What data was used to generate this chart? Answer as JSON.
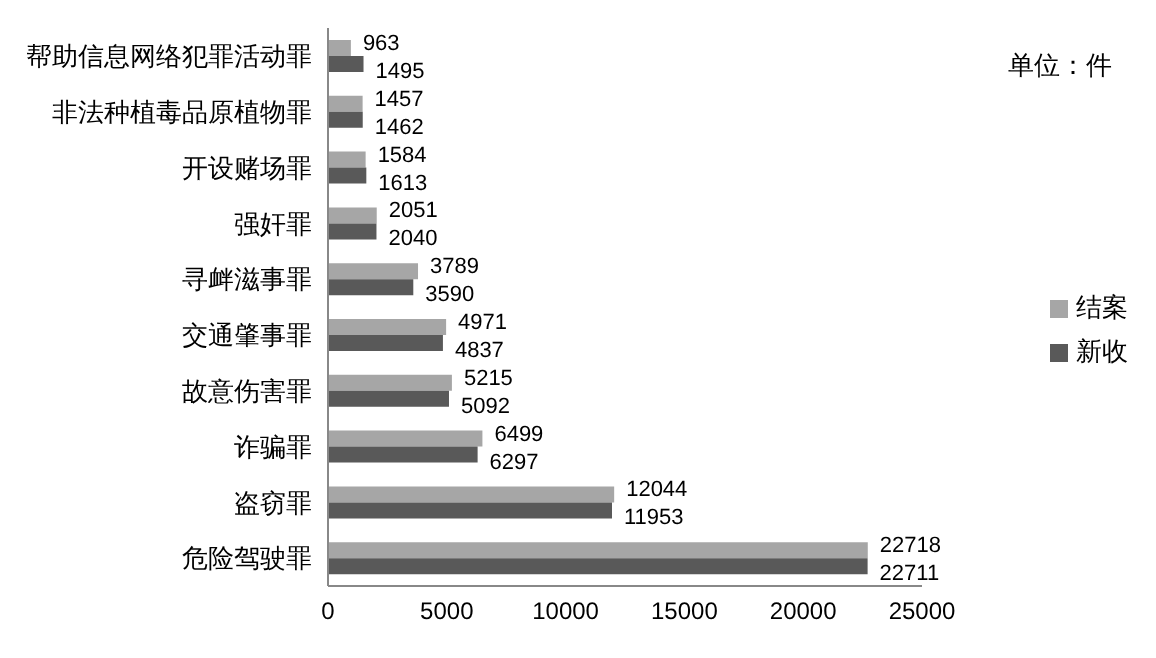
{
  "chart_data": {
    "type": "bar",
    "orientation": "horizontal",
    "categories": [
      "帮助信息网络犯罪活动罪",
      "非法种植毒品原植物罪",
      "开设赌场罪",
      "强奸罪",
      "寻衅滋事罪",
      "交通肇事罪",
      "故意伤害罪",
      "诈骗罪",
      "盗窃罪",
      "危险驾驶罪"
    ],
    "series": [
      {
        "name": "结案",
        "color": "#a6a6a6",
        "values": [
          963,
          1457,
          1584,
          2051,
          3789,
          4971,
          5215,
          6499,
          12044,
          22718
        ]
      },
      {
        "name": "新收",
        "color": "#595959",
        "values": [
          1495,
          1462,
          1613,
          2040,
          3590,
          4837,
          5092,
          6297,
          11953,
          22711
        ]
      }
    ],
    "xlim": [
      0,
      25000
    ],
    "xticks": [
      0,
      5000,
      10000,
      15000,
      20000,
      25000
    ],
    "legend": "right",
    "data_labels": true,
    "annotations": [
      "单位：件"
    ]
  }
}
